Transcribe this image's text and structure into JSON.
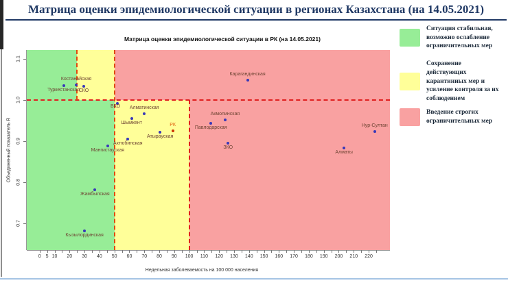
{
  "page": {
    "title": "Матрица оценки эпидемиологической ситуации в регионах Казахстана (на 14.05.2021)"
  },
  "legend": {
    "items": [
      {
        "color": "#97ed97",
        "label": "Ситуация стабильная,\nвозможно ослабление\nограничительных мер"
      },
      {
        "color": "#ffff99",
        "label": "Сохранение\nдействующих\nкарантинных мер и\nусиление контроля за их\nсоблюдением"
      },
      {
        "color": "#f9a1a1",
        "label": "Введение строгих\nограничительных мер"
      }
    ]
  },
  "chart_data": {
    "type": "scatter",
    "title": "Матрица оценки эпидемиологической ситуации в РК (на 14.05.2021)",
    "xlabel": "Недельная заболеваемость на 100 000 населения",
    "ylabel": "Объединенный показатель R",
    "xlim": [
      -8.6,
      234.2
    ],
    "ylim": [
      0.635,
      1.122
    ],
    "x_tick_labels": [
      0,
      5,
      10,
      20,
      30,
      40,
      50,
      60,
      70,
      80,
      90,
      100,
      110,
      120,
      130,
      140,
      150,
      160,
      170,
      180,
      190,
      200,
      210,
      220
    ],
    "x_tick_minor_step": 5,
    "x_tick_max": 225,
    "y_ticks": [
      0.7,
      0.8,
      0.9,
      1.0,
      1.1
    ],
    "grid": false,
    "legend_position": "right-of-plot",
    "zones": {
      "split_y": 1.0,
      "upper": {
        "green_to": 25,
        "yellow_to": 50
      },
      "lower": {
        "green_to": 50,
        "yellow_to": 100
      }
    },
    "reference_lines": {
      "horizontal_y": 1.0,
      "vertical_upper_only_x": 25,
      "vertical_full_x": 50,
      "vertical_lower_only_x": 100
    },
    "colors": {
      "green_zone": "#97ed97",
      "yellow_zone": "#ffff99",
      "red_zone": "#f9a1a1",
      "dashed_horizontal": "#e02020",
      "dashed_vertical": "#e04810",
      "point": "#3838b8",
      "point_highlight": "#cc3300",
      "label": "#6e4433",
      "label_highlight": "#e06010"
    },
    "points": [
      {
        "name": "Туркестанская",
        "x": 16,
        "y": 1.035,
        "label_pos": "below"
      },
      {
        "name": "Костанайская",
        "x": 24.5,
        "y": 1.037,
        "label_pos": "above"
      },
      {
        "name": "СКО",
        "x": 29.5,
        "y": 1.033,
        "label_pos": "below"
      },
      {
        "name": "Карагандинская",
        "x": 139,
        "y": 1.048,
        "label_pos": "above"
      },
      {
        "name": "ВКО",
        "x": 52,
        "y": 0.992,
        "label_pos": "left"
      },
      {
        "name": "Алматинская",
        "x": 70,
        "y": 0.967,
        "label_pos": "above"
      },
      {
        "name": "Шымкент",
        "x": 61.5,
        "y": 0.955,
        "label_pos": "below"
      },
      {
        "name": "РК",
        "x": 89,
        "y": 0.926,
        "label_pos": "above",
        "highlight": true
      },
      {
        "name": "Атырауская",
        "x": 80.5,
        "y": 0.922,
        "label_pos": "below"
      },
      {
        "name": "Актюбинская",
        "x": 59,
        "y": 0.906,
        "label_pos": "below"
      },
      {
        "name": "Мангистауская",
        "x": 45.5,
        "y": 0.889,
        "label_pos": "below"
      },
      {
        "name": "Акмолинская",
        "x": 124,
        "y": 0.952,
        "label_pos": "above"
      },
      {
        "name": "Павлодарская",
        "x": 114.5,
        "y": 0.943,
        "label_pos": "below"
      },
      {
        "name": "ЗКО",
        "x": 126,
        "y": 0.896,
        "label_pos": "below"
      },
      {
        "name": "Нур-Султан",
        "x": 224,
        "y": 0.924,
        "label_pos": "above"
      },
      {
        "name": "Алматы",
        "x": 203.5,
        "y": 0.883,
        "label_pos": "below"
      },
      {
        "name": "Жамбылская",
        "x": 37,
        "y": 0.781,
        "label_pos": "below"
      },
      {
        "name": "Кызылординская",
        "x": 30,
        "y": 0.682,
        "label_pos": "below"
      }
    ]
  }
}
